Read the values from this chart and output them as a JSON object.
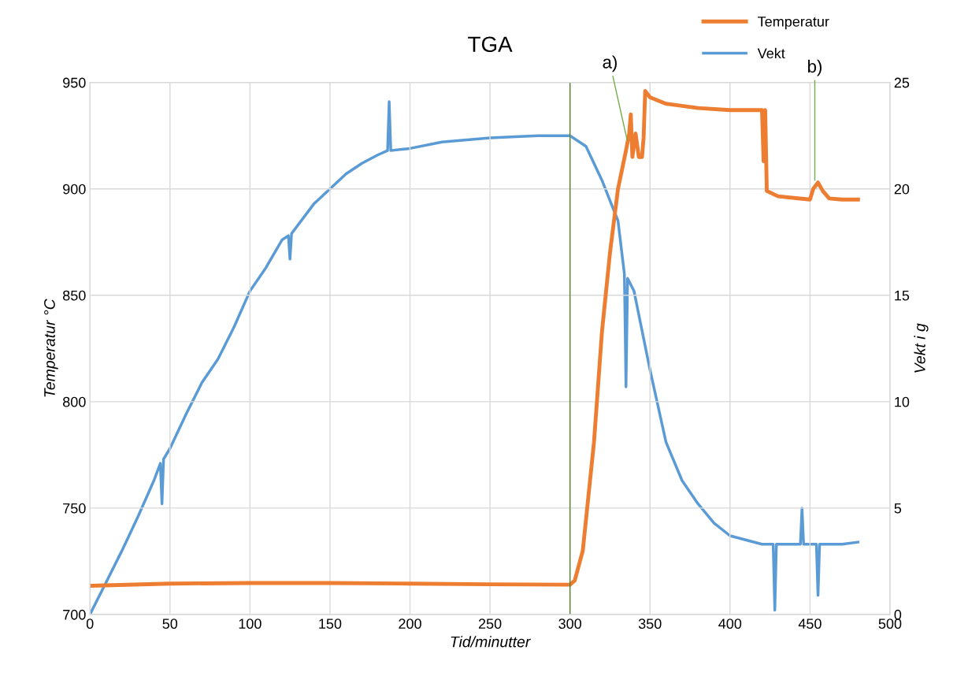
{
  "chart_data": {
    "type": "line",
    "title": "TGA",
    "xlabel": "Tid/minutter",
    "ylabel": "Temperatur °C",
    "y2label": "Vekt i g",
    "xlim": [
      0,
      500
    ],
    "xticks": [
      0,
      50,
      100,
      150,
      200,
      250,
      300,
      350,
      400,
      450,
      500
    ],
    "ylim": [
      700,
      950
    ],
    "yticks": [
      700,
      750,
      800,
      850,
      900,
      950
    ],
    "y2lim": [
      0,
      25
    ],
    "y2ticks": [
      0,
      5,
      10,
      15,
      20,
      25
    ],
    "grid": true,
    "legend": "top right",
    "line_style": "solid",
    "marker": "none",
    "series": [
      {
        "name": "Temperatur",
        "color": "#ed7d31",
        "x": [
          0,
          50,
          100,
          150,
          200,
          250,
          300,
          303,
          308,
          315,
          320,
          325,
          330,
          335,
          337,
          338,
          339,
          341,
          343,
          345,
          346,
          347,
          350,
          360,
          380,
          400,
          420,
          421,
          422,
          423,
          430,
          450,
          452,
          455,
          458,
          462,
          470,
          480
        ],
        "values": [
          713.5,
          714.5,
          714.8,
          714.8,
          714.5,
          714.2,
          714,
          716,
          730,
          781,
          833,
          870,
          900,
          918,
          926,
          935,
          915,
          926,
          915,
          915,
          924,
          946,
          943,
          940,
          938,
          937,
          937,
          913,
          937,
          899,
          896.5,
          895,
          900,
          903,
          899,
          895.5,
          895,
          895
        ]
      },
      {
        "name": "Vekt",
        "color": "#5b9bd5",
        "axis": "y2",
        "x": [
          0,
          10,
          20,
          30,
          40,
          44,
          45,
          46,
          50,
          60,
          70,
          80,
          90,
          100,
          110,
          120,
          124,
          125,
          126,
          130,
          140,
          150,
          160,
          170,
          180,
          186,
          187,
          188,
          200,
          220,
          250,
          280,
          300,
          310,
          320,
          330,
          334,
          335,
          336,
          340,
          350,
          360,
          370,
          380,
          390,
          400,
          420,
          427,
          428,
          429,
          440,
          444,
          445,
          446,
          454,
          455,
          456,
          470,
          480
        ],
        "values": [
          0,
          1.5,
          3,
          4.6,
          6.3,
          7.1,
          5.2,
          7.3,
          7.8,
          9.4,
          10.9,
          12,
          13.5,
          15.2,
          16.3,
          17.6,
          17.8,
          16.7,
          17.9,
          18.3,
          19.3,
          20,
          20.7,
          21.2,
          21.6,
          21.8,
          24.1,
          21.8,
          21.9,
          22.2,
          22.4,
          22.5,
          22.5,
          22,
          20.4,
          18.5,
          16,
          10.7,
          15.8,
          15.2,
          11.5,
          8.1,
          6.3,
          5.2,
          4.3,
          3.7,
          3.3,
          3.3,
          0.2,
          3.3,
          3.3,
          3.3,
          5,
          3.3,
          3.3,
          0.9,
          3.3,
          3.3,
          3.4
        ]
      }
    ],
    "ref_lines": [
      {
        "axis": "x",
        "value": 300,
        "color": "#548235"
      }
    ],
    "annotations": [
      {
        "text": "a)",
        "x": 336,
        "y": 922
      },
      {
        "text": "b)",
        "x": 453,
        "y": 903
      }
    ]
  }
}
